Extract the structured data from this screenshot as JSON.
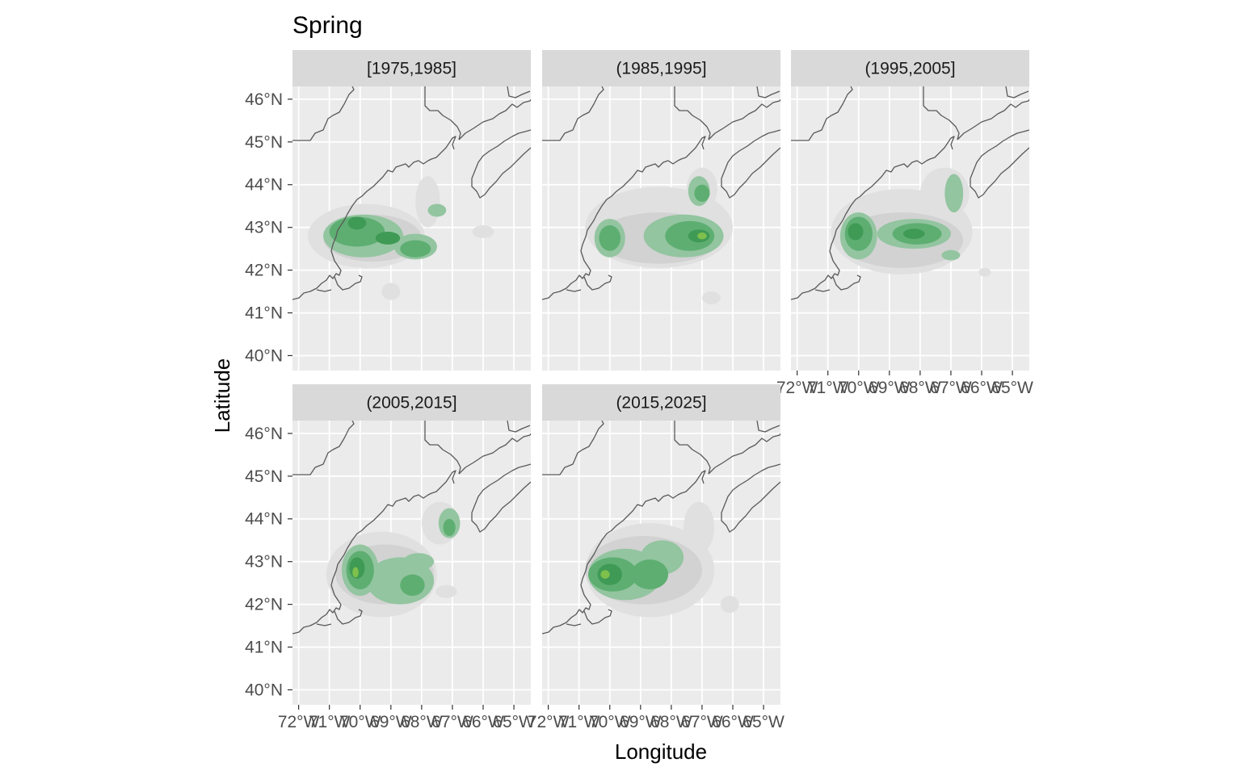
{
  "chart_data": {
    "type": "heatmap",
    "title": "Spring",
    "xlabel": "Longitude",
    "ylabel": "Latitude",
    "x_ticks": [
      "72°W",
      "71°W",
      "70°W",
      "69°W",
      "68°W",
      "67°W",
      "66°W",
      "65°W"
    ],
    "y_ticks": [
      "40°N",
      "41°N",
      "42°N",
      "43°N",
      "44°N",
      "45°N",
      "46°N"
    ],
    "xlim": [
      -72.2,
      -64.45
    ],
    "ylim": [
      39.65,
      46.3
    ],
    "grid": true,
    "colors": {
      "panel_bg": "#ebebeb",
      "strip_bg": "#d9d9d9",
      "grid": "#ffffff",
      "coast": "#595959",
      "density_levels": [
        "#e0e0e0",
        "#d2d2d2",
        "#bcd3c2",
        "#93c5a0",
        "#5eae72",
        "#3f9a55",
        "#7fbf4c"
      ]
    },
    "panels": [
      {
        "label": "[1975,1985]",
        "blobs": [
          {
            "lon": -69.8,
            "lat": 42.8,
            "rlon": 1.9,
            "rlat": 0.75,
            "level": 0
          },
          {
            "lon": -67.8,
            "lat": 43.6,
            "rlon": 0.4,
            "rlat": 0.6,
            "level": 0
          },
          {
            "lon": -66.0,
            "lat": 42.9,
            "rlon": 0.35,
            "rlat": 0.15,
            "level": 0
          },
          {
            "lon": -69.0,
            "lat": 41.5,
            "rlon": 0.3,
            "rlat": 0.2,
            "level": 0
          },
          {
            "lon": -69.6,
            "lat": 42.75,
            "rlon": 1.6,
            "rlat": 0.55,
            "level": 1
          },
          {
            "lon": -69.9,
            "lat": 42.8,
            "rlon": 1.3,
            "rlat": 0.5,
            "level": 3
          },
          {
            "lon": -68.2,
            "lat": 42.55,
            "rlon": 0.7,
            "rlat": 0.3,
            "level": 3
          },
          {
            "lon": -67.5,
            "lat": 43.4,
            "rlon": 0.3,
            "rlat": 0.15,
            "level": 3
          },
          {
            "lon": -70.1,
            "lat": 42.9,
            "rlon": 0.9,
            "rlat": 0.35,
            "level": 4
          },
          {
            "lon": -68.2,
            "lat": 42.5,
            "rlon": 0.5,
            "rlat": 0.2,
            "level": 4
          },
          {
            "lon": -70.1,
            "lat": 43.1,
            "rlon": 0.3,
            "rlat": 0.15,
            "level": 5
          },
          {
            "lon": -69.1,
            "lat": 42.75,
            "rlon": 0.4,
            "rlat": 0.15,
            "level": 5
          }
        ]
      },
      {
        "label": "(1985,1995]",
        "blobs": [
          {
            "lon": -68.4,
            "lat": 43.0,
            "rlon": 2.4,
            "rlat": 0.95,
            "level": 0
          },
          {
            "lon": -67.0,
            "lat": 43.9,
            "rlon": 0.5,
            "rlat": 0.5,
            "level": 0
          },
          {
            "lon": -66.7,
            "lat": 41.35,
            "rlon": 0.3,
            "rlat": 0.15,
            "level": 0
          },
          {
            "lon": -68.4,
            "lat": 42.75,
            "rlon": 2.0,
            "rlat": 0.6,
            "level": 1
          },
          {
            "lon": -70.0,
            "lat": 42.75,
            "rlon": 0.5,
            "rlat": 0.45,
            "level": 3
          },
          {
            "lon": -67.6,
            "lat": 42.8,
            "rlon": 1.3,
            "rlat": 0.5,
            "level": 3
          },
          {
            "lon": -67.1,
            "lat": 43.85,
            "rlon": 0.35,
            "rlat": 0.35,
            "level": 3
          },
          {
            "lon": -70.0,
            "lat": 42.75,
            "rlon": 0.35,
            "rlat": 0.3,
            "level": 4
          },
          {
            "lon": -67.4,
            "lat": 42.8,
            "rlon": 0.8,
            "rlat": 0.35,
            "level": 4
          },
          {
            "lon": -67.0,
            "lat": 43.8,
            "rlon": 0.25,
            "rlat": 0.2,
            "level": 4
          },
          {
            "lon": -67.1,
            "lat": 42.8,
            "rlon": 0.35,
            "rlat": 0.15,
            "level": 5
          },
          {
            "lon": -67.0,
            "lat": 42.8,
            "rlon": 0.15,
            "rlat": 0.08,
            "level": 6
          }
        ]
      },
      {
        "label": "(1995,2005]",
        "blobs": [
          {
            "lon": -68.6,
            "lat": 42.9,
            "rlon": 2.3,
            "rlat": 1.0,
            "level": 0
          },
          {
            "lon": -67.2,
            "lat": 43.8,
            "rlon": 0.8,
            "rlat": 0.6,
            "level": 0
          },
          {
            "lon": -65.9,
            "lat": 41.95,
            "rlon": 0.2,
            "rlat": 0.1,
            "level": 0
          },
          {
            "lon": -68.6,
            "lat": 42.7,
            "rlon": 2.0,
            "rlat": 0.65,
            "level": 1
          },
          {
            "lon": -70.0,
            "lat": 42.8,
            "rlon": 0.6,
            "rlat": 0.55,
            "level": 3
          },
          {
            "lon": -68.2,
            "lat": 42.85,
            "rlon": 1.2,
            "rlat": 0.35,
            "level": 3
          },
          {
            "lon": -66.9,
            "lat": 43.8,
            "rlon": 0.3,
            "rlat": 0.45,
            "level": 3
          },
          {
            "lon": -67.0,
            "lat": 42.35,
            "rlon": 0.3,
            "rlat": 0.12,
            "level": 3
          },
          {
            "lon": -70.0,
            "lat": 42.85,
            "rlon": 0.45,
            "rlat": 0.4,
            "level": 4
          },
          {
            "lon": -68.1,
            "lat": 42.85,
            "rlon": 0.8,
            "rlat": 0.25,
            "level": 4
          },
          {
            "lon": -70.1,
            "lat": 42.9,
            "rlon": 0.25,
            "rlat": 0.2,
            "level": 5
          },
          {
            "lon": -68.2,
            "lat": 42.85,
            "rlon": 0.35,
            "rlat": 0.12,
            "level": 5
          }
        ]
      },
      {
        "label": "(2005,2015]",
        "blobs": [
          {
            "lon": -69.3,
            "lat": 42.7,
            "rlon": 1.8,
            "rlat": 1.0,
            "level": 0
          },
          {
            "lon": -67.4,
            "lat": 43.9,
            "rlon": 0.6,
            "rlat": 0.5,
            "level": 0
          },
          {
            "lon": -67.2,
            "lat": 42.3,
            "rlon": 0.35,
            "rlat": 0.15,
            "level": 0
          },
          {
            "lon": -69.2,
            "lat": 42.7,
            "rlon": 1.6,
            "rlat": 0.7,
            "level": 1
          },
          {
            "lon": -70.0,
            "lat": 42.8,
            "rlon": 0.6,
            "rlat": 0.6,
            "level": 3
          },
          {
            "lon": -68.7,
            "lat": 42.55,
            "rlon": 1.1,
            "rlat": 0.55,
            "level": 3
          },
          {
            "lon": -67.1,
            "lat": 43.9,
            "rlon": 0.35,
            "rlat": 0.35,
            "level": 3
          },
          {
            "lon": -68.1,
            "lat": 43.0,
            "rlon": 0.5,
            "rlat": 0.2,
            "level": 3
          },
          {
            "lon": -70.0,
            "lat": 42.8,
            "rlon": 0.45,
            "rlat": 0.45,
            "level": 4
          },
          {
            "lon": -68.3,
            "lat": 42.45,
            "rlon": 0.4,
            "rlat": 0.25,
            "level": 4
          },
          {
            "lon": -67.1,
            "lat": 43.8,
            "rlon": 0.2,
            "rlat": 0.2,
            "level": 4
          },
          {
            "lon": -70.1,
            "lat": 42.85,
            "rlon": 0.25,
            "rlat": 0.25,
            "level": 5
          },
          {
            "lon": -70.15,
            "lat": 42.75,
            "rlon": 0.1,
            "rlat": 0.12,
            "level": 6
          }
        ]
      },
      {
        "label": "(2015,2025]",
        "blobs": [
          {
            "lon": -68.7,
            "lat": 42.8,
            "rlon": 2.1,
            "rlat": 1.1,
            "level": 0
          },
          {
            "lon": -67.1,
            "lat": 43.8,
            "rlon": 0.5,
            "rlat": 0.6,
            "level": 0
          },
          {
            "lon": -66.1,
            "lat": 42.0,
            "rlon": 0.3,
            "rlat": 0.2,
            "level": 0
          },
          {
            "lon": -68.9,
            "lat": 42.8,
            "rlon": 1.9,
            "rlat": 0.8,
            "level": 1
          },
          {
            "lon": -69.5,
            "lat": 42.7,
            "rlon": 1.2,
            "rlat": 0.6,
            "level": 3
          },
          {
            "lon": -68.3,
            "lat": 43.1,
            "rlon": 0.7,
            "rlat": 0.4,
            "level": 3
          },
          {
            "lon": -69.9,
            "lat": 42.7,
            "rlon": 0.8,
            "rlat": 0.4,
            "level": 4
          },
          {
            "lon": -68.7,
            "lat": 42.7,
            "rlon": 0.6,
            "rlat": 0.35,
            "level": 4
          },
          {
            "lon": -70.0,
            "lat": 42.7,
            "rlon": 0.4,
            "rlat": 0.25,
            "level": 5
          },
          {
            "lon": -70.15,
            "lat": 42.7,
            "rlon": 0.15,
            "rlat": 0.1,
            "level": 6
          }
        ]
      }
    ]
  }
}
